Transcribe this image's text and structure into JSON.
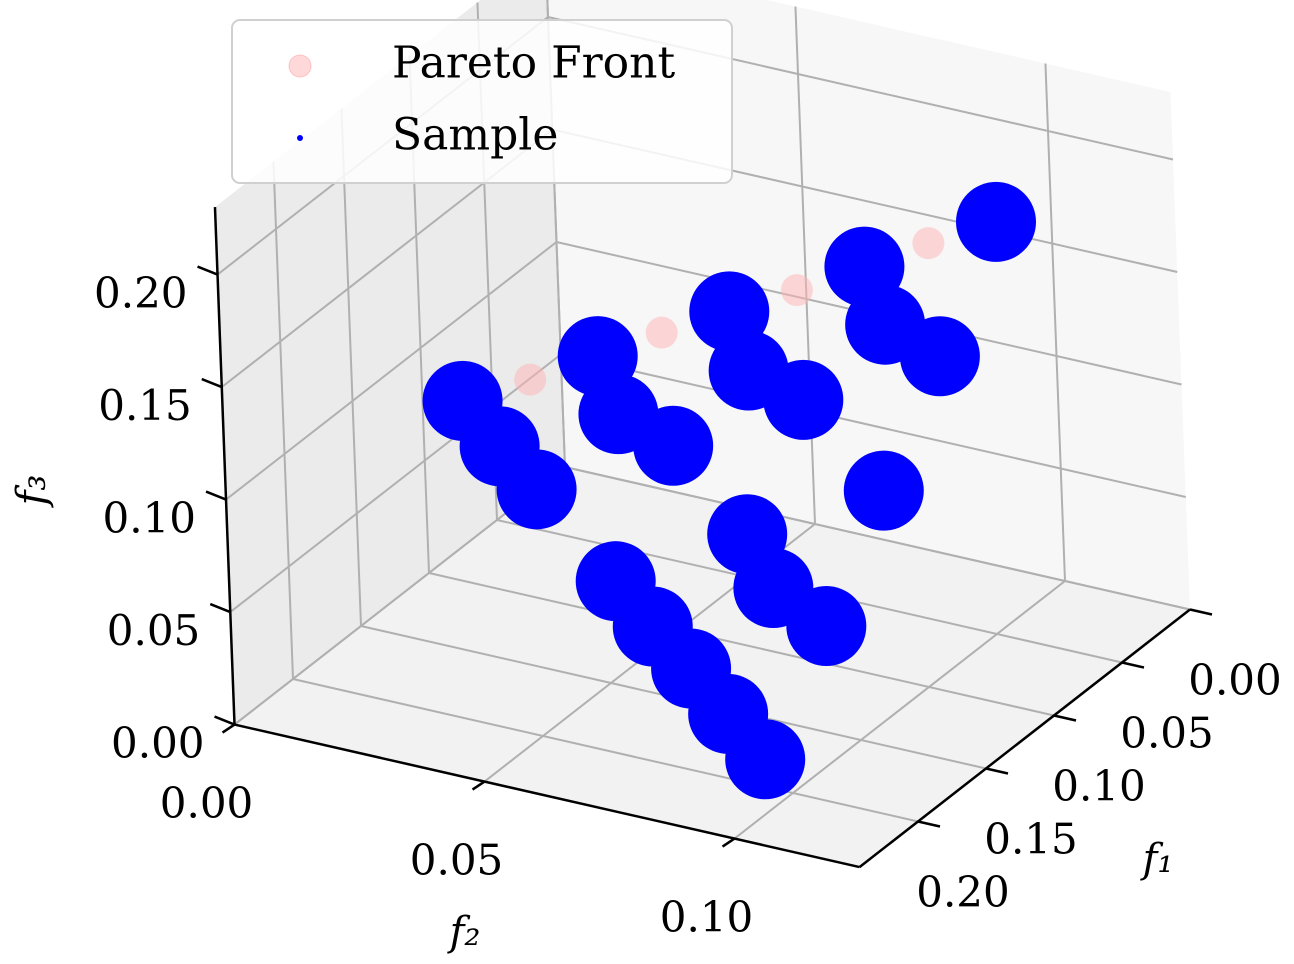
{
  "chart_data": {
    "type": "scatter3d",
    "xlabel": "f₁",
    "ylabel": "f₂",
    "zlabel": "f₃",
    "xlim": [
      0,
      0.243
    ],
    "ylim": [
      0,
      0.125
    ],
    "zlim": [
      0,
      0.23
    ],
    "xticks": [
      {
        "value": 0,
        "label": "0.00"
      },
      0.05,
      {
        "value": 0.1,
        "label": "0.10"
      },
      0.15,
      {
        "value": 0.2,
        "label": "0.20"
      }
    ],
    "yticks": [
      {
        "value": 0,
        "label": "0.00"
      },
      0.05,
      {
        "value": 0.1,
        "label": "0.10"
      }
    ],
    "zticks": [
      {
        "value": 0,
        "label": "0.00"
      },
      0.05,
      {
        "value": 0.1,
        "label": "0.10"
      },
      0.15,
      {
        "value": 0.2,
        "label": "0.20"
      }
    ],
    "grid": true,
    "legend": "upper left",
    "series": [
      {
        "name": "Pareto Front",
        "color": "#ffb3b3",
        "x": [
          0.213,
          0.196,
          0.179,
          0.161,
          0.144,
          0.127,
          0.11,
          0.092,
          0.075
        ],
        "y": [
          0.04,
          0.049,
          0.058,
          0.066,
          0.075,
          0.084,
          0.093,
          0.101,
          0.11
        ],
        "z": [
          0.15,
          0.156,
          0.163,
          0.169,
          0.175,
          0.181,
          0.188,
          0.194,
          0.2
        ]
      },
      {
        "name": "Sample",
        "color": "#0000ff",
        "x": [
          0.213,
          0.179,
          0.144,
          0.11,
          0.075,
          0.205,
          0.17,
          0.136,
          0.101,
          0.197,
          0.162,
          0.127,
          0.188,
          0.154,
          0.18,
          0.209,
          0.187,
          0.153,
          0.118,
          0.193,
          0.166,
          0.184
        ],
        "y": [
          0.04,
          0.058,
          0.075,
          0.093,
          0.11,
          0.052,
          0.07,
          0.087,
          0.105,
          0.065,
          0.082,
          0.1,
          0.077,
          0.095,
          0.089,
          0.046,
          0.064,
          0.081,
          0.099,
          0.071,
          0.088,
          0.083
        ],
        "z": [
          0.15,
          0.163,
          0.175,
          0.188,
          0.2,
          0.113,
          0.125,
          0.138,
          0.15,
          0.075,
          0.088,
          0.1,
          0.038,
          0.05,
          0.0,
          0.131,
          0.144,
          0.156,
          0.169,
          0.056,
          0.069,
          0.019
        ]
      }
    ]
  }
}
